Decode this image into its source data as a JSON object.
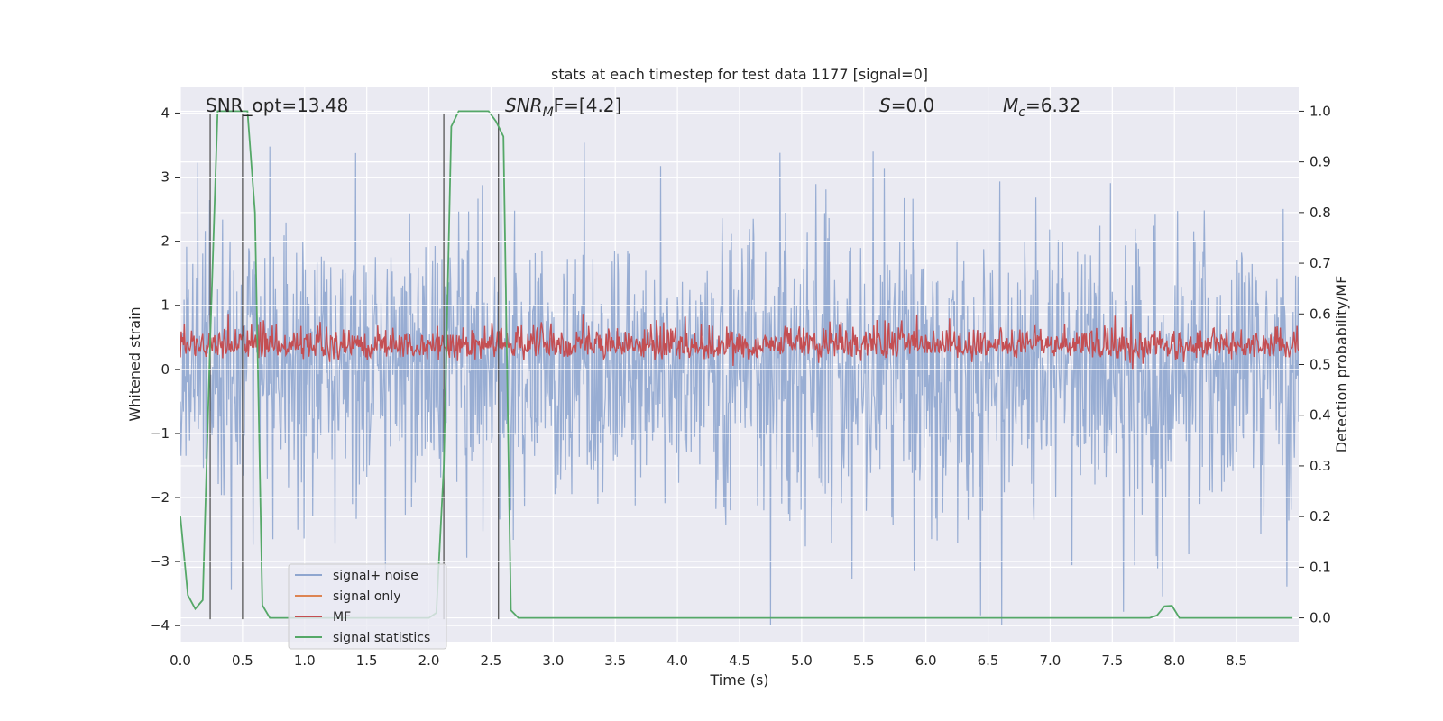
{
  "chart_data": {
    "type": "line",
    "title": "stats at each timestep for test data 1177 [signal=0]",
    "xlabel": "Time (s)",
    "ylabel": "Whitened strain",
    "y2label": "Detection probability/MF",
    "xlim": [
      0.0,
      9.0
    ],
    "ylim": [
      -4.25,
      4.4
    ],
    "y2lim": [
      -0.047,
      1.047
    ],
    "grid": true,
    "x_ticks": [
      0.0,
      0.5,
      1.0,
      1.5,
      2.0,
      2.5,
      3.0,
      3.5,
      4.0,
      4.5,
      5.0,
      5.5,
      6.0,
      6.5,
      7.0,
      7.5,
      8.0,
      8.5
    ],
    "x_tick_labels": [
      "0.0",
      "0.5",
      "1.0",
      "1.5",
      "2.0",
      "2.5",
      "3.0",
      "3.5",
      "4.0",
      "4.5",
      "5.0",
      "5.5",
      "6.0",
      "6.5",
      "7.0",
      "7.5",
      "8.0",
      "8.5"
    ],
    "y_ticks": [
      4,
      3,
      2,
      1,
      0,
      -1,
      -2,
      -3,
      -4
    ],
    "y_tick_labels": [
      "4",
      "3",
      "2",
      "1",
      "0",
      "−1",
      "−2",
      "−3",
      "−4"
    ],
    "y2_ticks": [
      1.0,
      0.9,
      0.8,
      0.7,
      0.6,
      0.5,
      0.4,
      0.3,
      0.2,
      0.1,
      0.0
    ],
    "y2_tick_labels": [
      "1.0",
      "0.9",
      "0.8",
      "0.7",
      "0.6",
      "0.5",
      "0.4",
      "0.3",
      "0.2",
      "0.1",
      "0.0"
    ],
    "annotations": {
      "snr_opt": "SNR_opt=13.48",
      "snr_mf_base": "SNR",
      "snr_mf_sub": "M",
      "snr_mf_rest": "F=[4.2]",
      "s_var": "S",
      "s_val": "=0.0",
      "mc_base": "M",
      "mc_sub": "c",
      "mc_val": "=6.32"
    },
    "vlines": [
      0.24,
      0.5,
      2.12,
      2.56
    ],
    "vline_ylim": [
      -3.9,
      4.0
    ],
    "legend": {
      "placement": "lower-left",
      "entries": [
        "signal+ noise",
        "signal only",
        "MF",
        "signal statistics"
      ]
    },
    "series": [
      {
        "name": "signal+ noise",
        "color": "#8fa6cf",
        "kind": "dense-noise",
        "x_range": [
          0.0,
          9.0
        ],
        "y_range": [
          -4.0,
          4.0
        ]
      },
      {
        "name": "signal only",
        "color": "#dd8452",
        "kind": "none"
      },
      {
        "name": "MF",
        "color": "#c44e52",
        "kind": "dense-noise",
        "axis": "y2",
        "x_range": [
          0.0,
          9.0
        ],
        "y2_range": [
          0.49,
          0.6
        ]
      },
      {
        "name": "signal statistics",
        "color": "#55a868",
        "axis": "y2",
        "x": [
          0.0,
          0.06,
          0.12,
          0.18,
          0.24,
          0.3,
          0.36,
          0.42,
          0.48,
          0.54,
          0.6,
          0.66,
          0.72,
          0.78,
          0.84,
          0.9,
          1.0,
          2.0,
          2.06,
          2.12,
          2.18,
          2.24,
          2.3,
          2.36,
          2.42,
          2.48,
          2.54,
          2.6,
          2.66,
          2.72,
          7.8,
          7.86,
          7.92,
          7.98,
          8.04,
          8.1,
          8.95
        ],
        "y": [
          0.2,
          0.045,
          0.018,
          0.035,
          0.55,
          1.0,
          1.0,
          1.0,
          1.0,
          1.0,
          0.8,
          0.025,
          0.0,
          0.0,
          0.0,
          0.0,
          0.0,
          0.0,
          0.01,
          0.3,
          0.97,
          1.0,
          1.0,
          1.0,
          1.0,
          1.0,
          0.98,
          0.95,
          0.015,
          0.0,
          0.0,
          0.005,
          0.023,
          0.024,
          0.0,
          0.0,
          0.0
        ]
      }
    ]
  }
}
